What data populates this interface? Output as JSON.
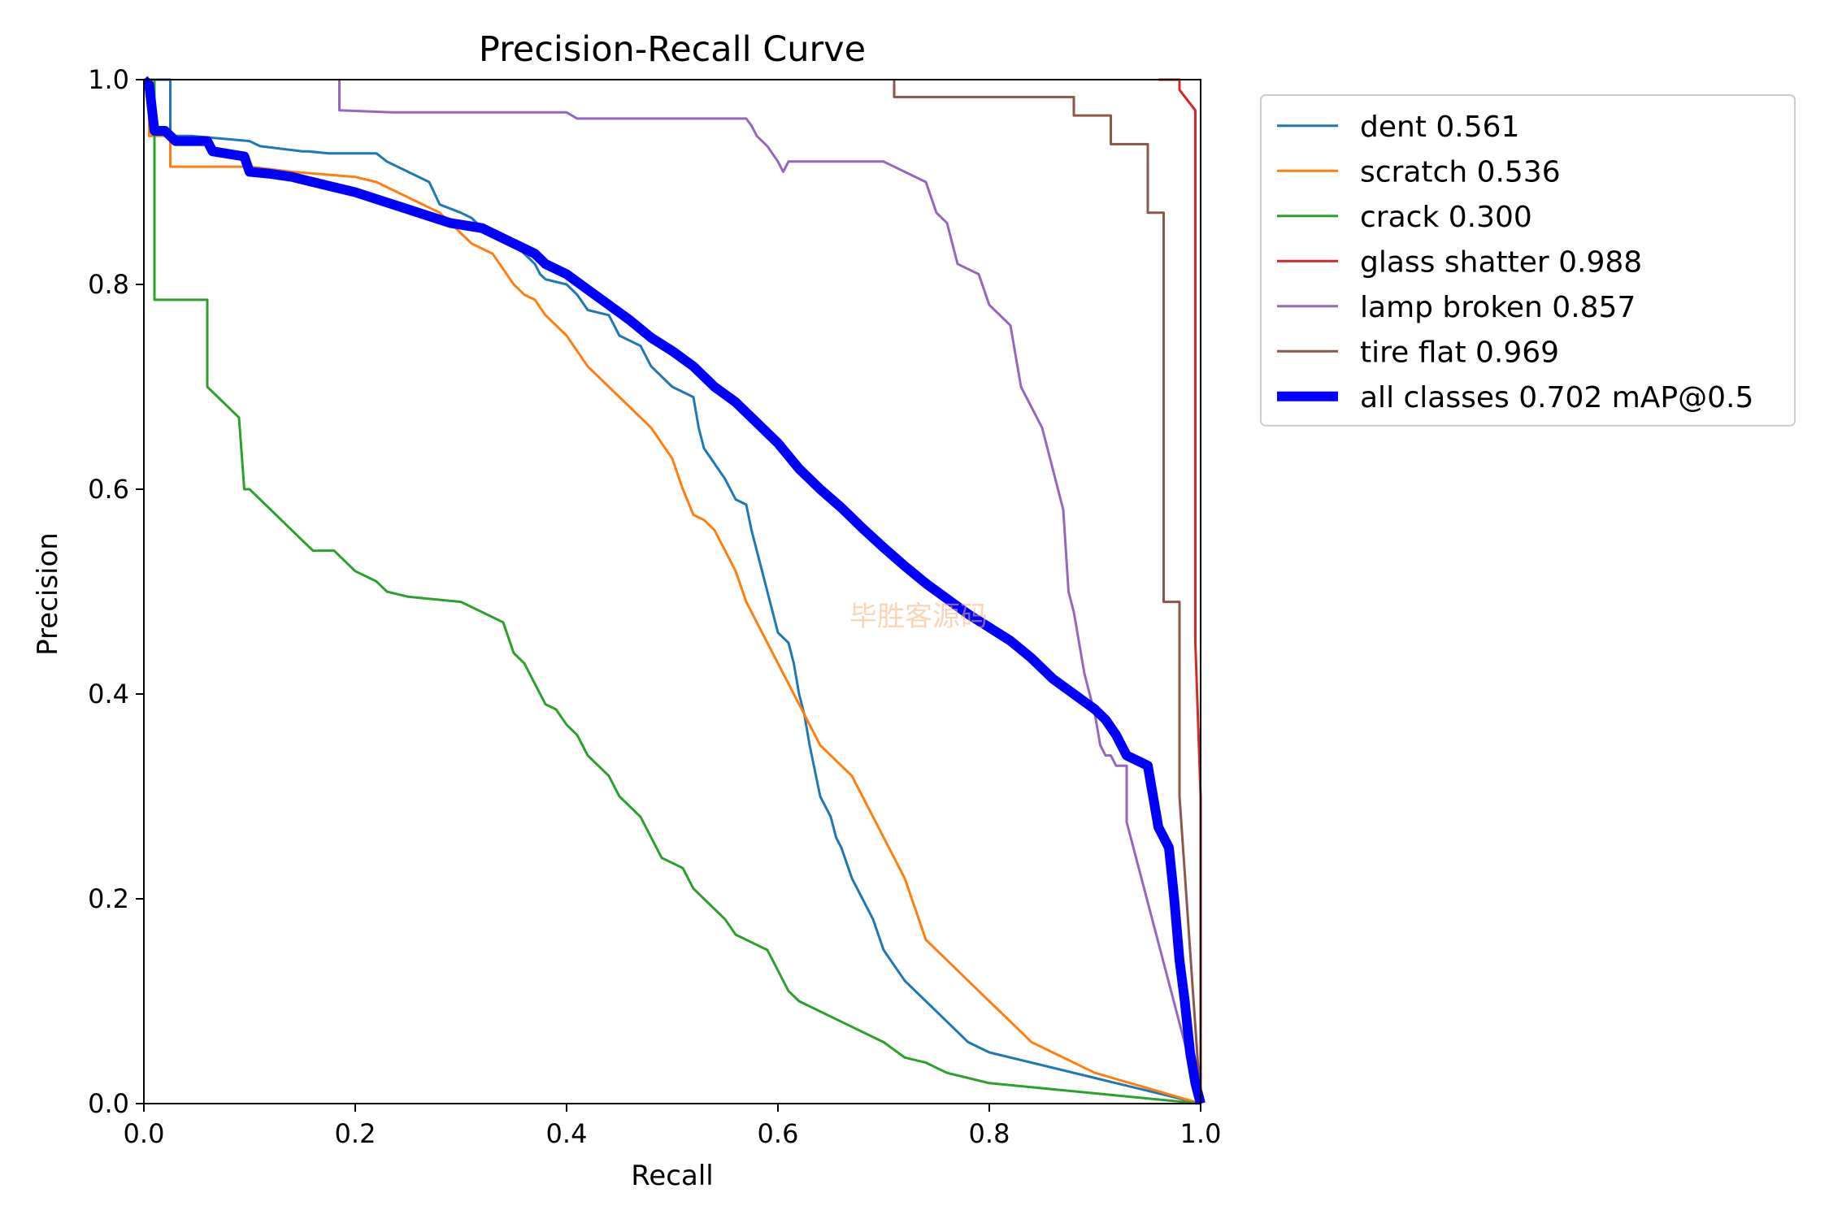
{
  "chart_data": {
    "type": "line",
    "title": "Precision-Recall Curve",
    "xlabel": "Recall",
    "ylabel": "Precision",
    "xlim": [
      0,
      1
    ],
    "ylim": [
      0,
      1
    ],
    "x_ticks": [
      "0.0",
      "0.2",
      "0.4",
      "0.6",
      "0.8",
      "1.0"
    ],
    "y_ticks": [
      "0.0",
      "0.2",
      "0.4",
      "0.6",
      "0.8",
      "1.0"
    ],
    "legend_position": "outside-top-right",
    "watermark": "毕胜客源码",
    "series": [
      {
        "name": "dent 0.561",
        "color": "#1f77b4",
        "width": 2,
        "x": [
          0.0,
          0.025,
          0.025,
          0.045,
          0.1,
          0.11,
          0.15,
          0.155,
          0.175,
          0.22,
          0.23,
          0.27,
          0.28,
          0.3,
          0.31,
          0.315,
          0.33,
          0.35,
          0.37,
          0.375,
          0.38,
          0.4,
          0.41,
          0.42,
          0.44,
          0.445,
          0.45,
          0.47,
          0.48,
          0.5,
          0.52,
          0.525,
          0.53,
          0.54,
          0.55,
          0.56,
          0.57,
          0.575,
          0.58,
          0.585,
          0.59,
          0.6,
          0.61,
          0.615,
          0.62,
          0.625,
          0.63,
          0.64,
          0.65,
          0.655,
          0.66,
          0.67,
          0.68,
          0.69,
          0.7,
          0.72,
          0.74,
          0.75,
          0.76,
          0.78,
          0.8,
          0.9,
          1.0
        ],
        "y": [
          1.0,
          1.0,
          0.945,
          0.945,
          0.94,
          0.935,
          0.93,
          0.93,
          0.928,
          0.928,
          0.92,
          0.9,
          0.878,
          0.87,
          0.865,
          0.86,
          0.85,
          0.84,
          0.82,
          0.81,
          0.805,
          0.8,
          0.79,
          0.775,
          0.77,
          0.76,
          0.75,
          0.74,
          0.72,
          0.7,
          0.69,
          0.66,
          0.64,
          0.625,
          0.61,
          0.59,
          0.585,
          0.56,
          0.54,
          0.52,
          0.5,
          0.46,
          0.45,
          0.43,
          0.4,
          0.38,
          0.35,
          0.3,
          0.28,
          0.26,
          0.25,
          0.22,
          0.2,
          0.18,
          0.15,
          0.12,
          0.1,
          0.09,
          0.08,
          0.06,
          0.05,
          0.025,
          0.0
        ]
      },
      {
        "name": "scratch 0.536",
        "color": "#ff7f0e",
        "width": 2,
        "x": [
          0.0,
          0.005,
          0.005,
          0.025,
          0.025,
          0.1,
          0.14,
          0.2,
          0.22,
          0.25,
          0.28,
          0.3,
          0.31,
          0.32,
          0.33,
          0.35,
          0.36,
          0.37,
          0.38,
          0.4,
          0.42,
          0.44,
          0.46,
          0.48,
          0.5,
          0.51,
          0.52,
          0.53,
          0.54,
          0.55,
          0.56,
          0.57,
          0.58,
          0.59,
          0.6,
          0.61,
          0.62,
          0.63,
          0.64,
          0.65,
          0.66,
          0.67,
          0.68,
          0.69,
          0.7,
          0.71,
          0.72,
          0.73,
          0.74,
          0.76,
          0.78,
          0.8,
          0.82,
          0.84,
          0.86,
          0.9,
          1.0
        ],
        "y": [
          1.0,
          1.0,
          0.945,
          0.945,
          0.915,
          0.915,
          0.91,
          0.905,
          0.9,
          0.885,
          0.87,
          0.85,
          0.84,
          0.835,
          0.83,
          0.8,
          0.79,
          0.785,
          0.77,
          0.75,
          0.72,
          0.7,
          0.68,
          0.66,
          0.63,
          0.6,
          0.575,
          0.57,
          0.56,
          0.54,
          0.52,
          0.49,
          0.47,
          0.45,
          0.43,
          0.41,
          0.39,
          0.37,
          0.35,
          0.34,
          0.33,
          0.32,
          0.3,
          0.28,
          0.26,
          0.24,
          0.22,
          0.19,
          0.16,
          0.14,
          0.12,
          0.1,
          0.08,
          0.06,
          0.05,
          0.03,
          0.0
        ]
      },
      {
        "name": "crack 0.300",
        "color": "#2ca02c",
        "width": 2,
        "x": [
          0.0,
          0.01,
          0.01,
          0.06,
          0.06,
          0.08,
          0.09,
          0.095,
          0.1,
          0.12,
          0.14,
          0.16,
          0.18,
          0.2,
          0.22,
          0.23,
          0.25,
          0.3,
          0.31,
          0.32,
          0.33,
          0.34,
          0.35,
          0.36,
          0.37,
          0.38,
          0.39,
          0.4,
          0.41,
          0.42,
          0.43,
          0.44,
          0.45,
          0.46,
          0.47,
          0.48,
          0.49,
          0.5,
          0.51,
          0.52,
          0.53,
          0.54,
          0.55,
          0.56,
          0.57,
          0.58,
          0.59,
          0.6,
          0.61,
          0.62,
          0.63,
          0.64,
          0.66,
          0.68,
          0.7,
          0.72,
          0.74,
          0.76,
          0.78,
          0.8,
          0.9,
          1.0
        ],
        "y": [
          1.0,
          1.0,
          0.785,
          0.785,
          0.7,
          0.68,
          0.67,
          0.6,
          0.6,
          0.58,
          0.56,
          0.54,
          0.54,
          0.52,
          0.51,
          0.5,
          0.495,
          0.49,
          0.485,
          0.48,
          0.475,
          0.47,
          0.44,
          0.43,
          0.41,
          0.39,
          0.385,
          0.37,
          0.36,
          0.34,
          0.33,
          0.32,
          0.3,
          0.29,
          0.28,
          0.26,
          0.24,
          0.235,
          0.23,
          0.21,
          0.2,
          0.19,
          0.18,
          0.165,
          0.16,
          0.155,
          0.15,
          0.13,
          0.11,
          0.1,
          0.095,
          0.09,
          0.08,
          0.07,
          0.06,
          0.045,
          0.04,
          0.03,
          0.025,
          0.02,
          0.01,
          0.0
        ]
      },
      {
        "name": "glass shatter 0.988",
        "color": "#d62728",
        "width": 2,
        "x": [
          0.96,
          0.98,
          0.98,
          0.995,
          0.995,
          1.0,
          1.0
        ],
        "y": [
          1.0,
          1.0,
          0.99,
          0.97,
          0.45,
          0.3,
          0.0
        ]
      },
      {
        "name": "lamp broken 0.857",
        "color": "#9467bd",
        "width": 2,
        "x": [
          0.185,
          0.185,
          0.235,
          0.4,
          0.41,
          0.57,
          0.575,
          0.58,
          0.59,
          0.6,
          0.605,
          0.61,
          0.7,
          0.74,
          0.75,
          0.76,
          0.765,
          0.77,
          0.79,
          0.8,
          0.82,
          0.83,
          0.84,
          0.85,
          0.86,
          0.87,
          0.875,
          0.88,
          0.885,
          0.89,
          0.9,
          0.905,
          0.91,
          0.915,
          0.92,
          0.93,
          0.93,
          1.0
        ],
        "y": [
          1.0,
          0.97,
          0.968,
          0.968,
          0.962,
          0.962,
          0.955,
          0.945,
          0.935,
          0.92,
          0.91,
          0.92,
          0.92,
          0.9,
          0.87,
          0.86,
          0.84,
          0.82,
          0.81,
          0.78,
          0.76,
          0.7,
          0.68,
          0.66,
          0.62,
          0.58,
          0.5,
          0.48,
          0.45,
          0.42,
          0.38,
          0.35,
          0.34,
          0.34,
          0.33,
          0.33,
          0.275,
          0.0
        ]
      },
      {
        "name": "tire flat 0.969",
        "color": "#8c564b",
        "width": 2,
        "x": [
          0.71,
          0.71,
          0.88,
          0.88,
          0.915,
          0.915,
          0.95,
          0.95,
          0.965,
          0.965,
          0.98,
          0.98,
          1.0
        ],
        "y": [
          1.0,
          0.983,
          0.983,
          0.965,
          0.965,
          0.937,
          0.937,
          0.87,
          0.87,
          0.49,
          0.49,
          0.3,
          0.0
        ]
      },
      {
        "name": "all classes 0.702 mAP@0.5",
        "color": "#0000ff",
        "width": 8,
        "x": [
          0.0,
          0.005,
          0.01,
          0.02,
          0.03,
          0.06,
          0.065,
          0.095,
          0.1,
          0.12,
          0.14,
          0.18,
          0.2,
          0.23,
          0.26,
          0.29,
          0.32,
          0.35,
          0.37,
          0.38,
          0.4,
          0.42,
          0.44,
          0.46,
          0.48,
          0.5,
          0.52,
          0.54,
          0.56,
          0.58,
          0.6,
          0.62,
          0.64,
          0.66,
          0.68,
          0.7,
          0.72,
          0.74,
          0.76,
          0.78,
          0.8,
          0.82,
          0.84,
          0.86,
          0.88,
          0.9,
          0.91,
          0.92,
          0.93,
          0.95,
          0.96,
          0.965,
          0.97,
          0.975,
          0.98,
          0.985,
          0.99,
          0.995,
          1.0
        ],
        "y": [
          1.0,
          0.995,
          0.95,
          0.95,
          0.94,
          0.94,
          0.93,
          0.925,
          0.91,
          0.908,
          0.905,
          0.895,
          0.89,
          0.88,
          0.87,
          0.86,
          0.855,
          0.84,
          0.83,
          0.82,
          0.81,
          0.795,
          0.78,
          0.765,
          0.748,
          0.735,
          0.72,
          0.7,
          0.685,
          0.665,
          0.645,
          0.62,
          0.6,
          0.582,
          0.562,
          0.543,
          0.525,
          0.508,
          0.493,
          0.478,
          0.465,
          0.452,
          0.435,
          0.415,
          0.4,
          0.385,
          0.375,
          0.36,
          0.34,
          0.33,
          0.27,
          0.26,
          0.25,
          0.2,
          0.14,
          0.1,
          0.05,
          0.02,
          0.0
        ]
      }
    ]
  }
}
